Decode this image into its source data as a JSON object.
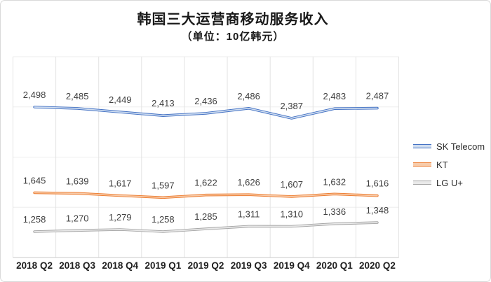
{
  "window": {
    "background": "#ffffff",
    "border_color": "#d9d9d9"
  },
  "chart_data": {
    "type": "line",
    "title": "韩国三大运营商移动服务收入",
    "subtitle": "（单位：10亿韩元）",
    "categories": [
      "2018 Q2",
      "2018 Q3",
      "2018 Q4",
      "2019 Q1",
      "2019 Q2",
      "2019 Q3",
      "2019 Q4",
      "2020 Q1",
      "2020 Q2"
    ],
    "series": [
      {
        "name": "SK Telecom",
        "values": [
          2498,
          2485,
          2449,
          2413,
          2436,
          2486,
          2387,
          2483,
          2487
        ],
        "color": "#4472c4",
        "inner_color": "#cfddf0"
      },
      {
        "name": "KT",
        "values": [
          1645,
          1639,
          1617,
          1597,
          1622,
          1626,
          1607,
          1632,
          1616
        ],
        "color": "#ed7d31",
        "inner_color": "#f7cba9"
      },
      {
        "name": "LG U+",
        "values": [
          1258,
          1270,
          1279,
          1258,
          1285,
          1311,
          1310,
          1336,
          1348
        ],
        "color": "#a5a5a5",
        "inner_color": "#e9e9e9"
      }
    ],
    "ylim": [
      1000,
      3000
    ],
    "grid_step": 500,
    "grid": "on",
    "legend_position": "right",
    "data_labels": true,
    "number_format": "thousands-comma",
    "label_color": "#404040",
    "axis_label_color": "#1f1f1f",
    "gridline_color_vertical": "#e3e3e3",
    "gridline_color_horizontal": "#ededed",
    "axis_line_color": "#c9c9c9"
  }
}
